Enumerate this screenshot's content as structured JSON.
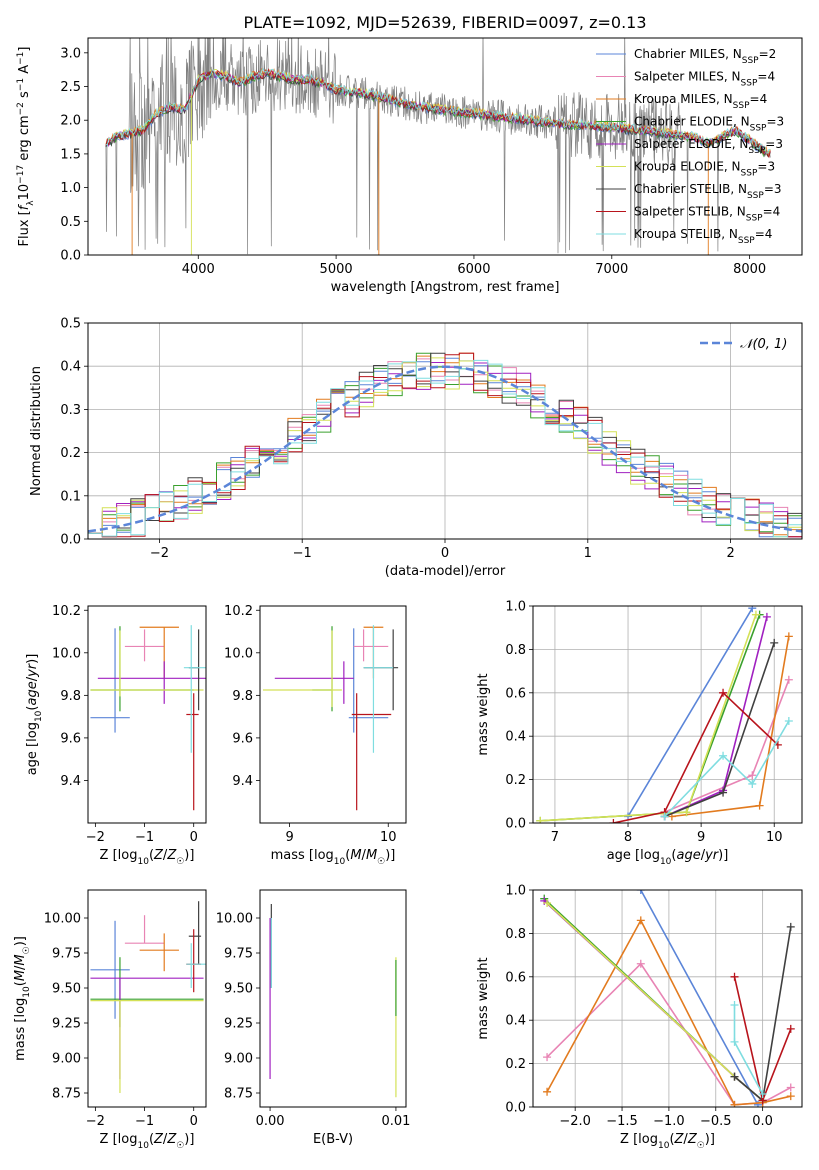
{
  "figure": {
    "title": "PLATE=1092, MJD=52639, FIBERID=0097, z=0.13",
    "colors": {
      "Chabrier MILES": "#5b85d8",
      "Salpeter MILES": "#e884b4",
      "Kroupa MILES": "#e27b1f",
      "Chabrier ELODIE": "#3aa02d",
      "Salpeter ELODIE": "#a020c0",
      "Kroupa ELODIE": "#d4e157",
      "Chabrier STELIB": "#404040",
      "Salpeter STELIB": "#b8141c",
      "Kroupa STELIB": "#7fdde0",
      "data": "#808080",
      "normal": "#5b85d8"
    }
  },
  "chart_data": [
    {
      "id": "spectrum",
      "type": "line",
      "xlabel": "wavelength [Angstrom, rest frame]",
      "ylabel": "Flux [f_λ 10⁻¹⁷ erg cm⁻² s⁻¹ A⁻¹]",
      "xlim": [
        3200,
        8380
      ],
      "ylim": [
        0,
        3.22
      ],
      "xticks": [
        4000,
        5000,
        6000,
        7000,
        8000
      ],
      "yticks": [
        0.0,
        0.5,
        1.0,
        1.5,
        2.0,
        2.5,
        3.0
      ],
      "legend": [
        {
          "label": "Chabrier MILES, N",
          "sub": "SSP",
          "suffix": "=2"
        },
        {
          "label": "Salpeter MILES, N",
          "sub": "SSP",
          "suffix": "=4"
        },
        {
          "label": "Kroupa MILES, N",
          "sub": "SSP",
          "suffix": "=4"
        },
        {
          "label": "Chabrier ELODIE, N",
          "sub": "SSP",
          "suffix": "=3"
        },
        {
          "label": "Salpeter ELODIE, N",
          "sub": "SSP",
          "suffix": "=3"
        },
        {
          "label": "Kroupa ELODIE, N",
          "sub": "SSP",
          "suffix": "=3"
        },
        {
          "label": "Chabrier STELIB, N",
          "sub": "SSP",
          "suffix": "=3"
        },
        {
          "label": "Salpeter STELIB, N",
          "sub": "SSP",
          "suffix": "=4"
        },
        {
          "label": "Kroupa STELIB, N",
          "sub": "SSP",
          "suffix": "=4"
        }
      ],
      "legend_position": "upper right",
      "model_envelope": [
        [
          3330,
          1.65
        ],
        [
          3400,
          1.75
        ],
        [
          3500,
          1.8
        ],
        [
          3600,
          1.85
        ],
        [
          3700,
          2.1
        ],
        [
          3800,
          2.2
        ],
        [
          3900,
          2.15
        ],
        [
          4000,
          2.6
        ],
        [
          4100,
          2.7
        ],
        [
          4200,
          2.65
        ],
        [
          4300,
          2.55
        ],
        [
          4400,
          2.65
        ],
        [
          4500,
          2.7
        ],
        [
          4600,
          2.65
        ],
        [
          4700,
          2.6
        ],
        [
          4800,
          2.6
        ],
        [
          4900,
          2.55
        ],
        [
          5000,
          2.45
        ],
        [
          5200,
          2.4
        ],
        [
          5400,
          2.3
        ],
        [
          5600,
          2.2
        ],
        [
          5800,
          2.15
        ],
        [
          6000,
          2.1
        ],
        [
          6200,
          2.05
        ],
        [
          6400,
          2.0
        ],
        [
          6600,
          1.95
        ],
        [
          6800,
          1.92
        ],
        [
          7000,
          1.9
        ],
        [
          7200,
          1.85
        ],
        [
          7400,
          1.8
        ],
        [
          7600,
          1.75
        ],
        [
          7700,
          1.65
        ],
        [
          7800,
          1.75
        ],
        [
          7900,
          1.85
        ],
        [
          8000,
          1.7
        ],
        [
          8100,
          1.55
        ],
        [
          8150,
          1.5
        ]
      ]
    },
    {
      "id": "residuals",
      "type": "histogram",
      "xlabel": "(data-model)/error",
      "ylabel": "Normed distribution",
      "xlim": [
        -2.5,
        2.5
      ],
      "ylim": [
        0,
        0.5
      ],
      "xticks": [
        -2,
        -1,
        0,
        1,
        2
      ],
      "yticks": [
        0.0,
        0.1,
        0.2,
        0.3,
        0.4,
        0.5
      ],
      "grid": true,
      "legend": {
        "label": "N(0,1)",
        "position": "upper right"
      },
      "curve": {
        "type": "normal",
        "mean": 0,
        "sigma": 1
      }
    },
    {
      "id": "age-vs-Z",
      "type": "errorbar",
      "xlabel": "Z [log10(Z/Z☉)]",
      "ylabel": "age [log10(age/yr)]",
      "xlim": [
        -2.15,
        0.25
      ],
      "ylim": [
        9.2,
        10.22
      ],
      "xticks": [
        -2,
        -1,
        0
      ],
      "yticks": [
        9.4,
        9.6,
        9.8,
        10.0,
        10.2
      ],
      "points": [
        {
          "model": "Chabrier MILES",
          "x": -1.6,
          "xerr": [
            0.5,
            0.3
          ],
          "y": 9.695,
          "yerr": [
            0.07,
            0.42
          ]
        },
        {
          "model": "Salpeter MILES",
          "x": -1.0,
          "xerr": [
            0.4,
            0.4
          ],
          "y": 10.03,
          "yerr": [
            0.07,
            0.08
          ]
        },
        {
          "model": "Kroupa MILES",
          "x": -0.6,
          "xerr": [
            0.5,
            0.3
          ],
          "y": 10.12,
          "yerr": [
            0.24,
            0.0
          ]
        },
        {
          "model": "Chabrier ELODIE",
          "x": -1.5,
          "xerr": [
            0.6,
            1.5
          ],
          "y": 9.825,
          "yerr": [
            0.1,
            0.3
          ]
        },
        {
          "model": "Salpeter ELODIE",
          "x": -0.6,
          "xerr": [
            1.35,
            1.35
          ],
          "y": 9.88,
          "yerr": [
            0.12,
            0.08
          ]
        },
        {
          "model": "Kroupa ELODIE",
          "x": -1.5,
          "xerr": [
            0.6,
            1.7
          ],
          "y": 9.825,
          "yerr": [
            0.03,
            0.28
          ]
        },
        {
          "model": "Chabrier STELIB",
          "x": 0.1,
          "xerr": [
            0.2,
            0.0
          ],
          "y": 9.93,
          "yerr": [
            0.2,
            0.18
          ]
        },
        {
          "model": "Salpeter STELIB",
          "x": 0.0,
          "xerr": [
            0.15,
            0.1
          ],
          "y": 9.71,
          "yerr": [
            0.45,
            0.1
          ]
        },
        {
          "model": "Kroupa STELIB",
          "x": -0.05,
          "xerr": [
            0.15,
            0.3
          ],
          "y": 9.93,
          "yerr": [
            0.4,
            0.2
          ]
        }
      ]
    },
    {
      "id": "age-vs-mass",
      "type": "errorbar",
      "xlabel": "mass [log10(M/M☉)]",
      "ylabel": "",
      "xlim": [
        8.7,
        10.18
      ],
      "ylim": [
        9.2,
        10.22
      ],
      "xticks": [
        9,
        10
      ],
      "yticks": [
        9.4,
        9.6,
        9.8,
        10.0,
        10.2
      ],
      "points": [
        {
          "model": "Chabrier MILES",
          "x": 9.65,
          "xerr": [
            0.05,
            0.35
          ],
          "y": 9.695,
          "yerr": [
            0.07,
            0.42
          ]
        },
        {
          "model": "Salpeter MILES",
          "x": 9.75,
          "xerr": [
            0.1,
            0.25
          ],
          "y": 10.03,
          "yerr": [
            0.07,
            0.08
          ]
        },
        {
          "model": "Kroupa MILES",
          "x": 9.85,
          "xerr": [
            0.1,
            0.1
          ],
          "y": 10.12,
          "yerr": [
            0.24,
            0.0
          ]
        },
        {
          "model": "Chabrier ELODIE",
          "x": 9.43,
          "xerr": [
            0.2,
            0.0
          ],
          "y": 9.825,
          "yerr": [
            0.1,
            0.3
          ]
        },
        {
          "model": "Salpeter ELODIE",
          "x": 9.55,
          "xerr": [
            0.7,
            0.1
          ],
          "y": 9.88,
          "yerr": [
            0.12,
            0.08
          ]
        },
        {
          "model": "Kroupa ELODIE",
          "x": 9.43,
          "xerr": [
            0.7,
            0.1
          ],
          "y": 9.825,
          "yerr": [
            0.08,
            0.28
          ]
        },
        {
          "model": "Chabrier STELIB",
          "x": 10.05,
          "xerr": [
            0.3,
            0.05
          ],
          "y": 9.93,
          "yerr": [
            0.2,
            0.18
          ]
        },
        {
          "model": "Salpeter STELIB",
          "x": 9.68,
          "xerr": [
            0.05,
            0.35
          ],
          "y": 9.71,
          "yerr": [
            0.45,
            0.1
          ]
        },
        {
          "model": "Kroupa STELIB",
          "x": 9.85,
          "xerr": [
            0.1,
            0.2
          ],
          "y": 9.93,
          "yerr": [
            0.4,
            0.2
          ]
        }
      ]
    },
    {
      "id": "massweight-vs-age",
      "type": "line",
      "xlabel": "age [log10(age/yr)]",
      "ylabel": "mass weight",
      "xlim": [
        6.7,
        10.38
      ],
      "ylim": [
        0,
        1.0
      ],
      "xticks": [
        7,
        8,
        9,
        10
      ],
      "yticks": [
        0.0,
        0.2,
        0.4,
        0.6,
        0.8,
        1.0
      ],
      "grid": true,
      "series": [
        {
          "model": "Chabrier MILES",
          "x": [
            8.0,
            9.7
          ],
          "y": [
            0.03,
            0.99
          ]
        },
        {
          "model": "Salpeter MILES",
          "x": [
            8.5,
            9.7,
            10.2
          ],
          "y": [
            0.05,
            0.22,
            0.66
          ]
        },
        {
          "model": "Kroupa MILES",
          "x": [
            8.6,
            9.8,
            10.2
          ],
          "y": [
            0.03,
            0.08,
            0.86
          ]
        },
        {
          "model": "Chabrier ELODIE",
          "x": [
            6.8,
            8.8,
            9.8
          ],
          "y": [
            0.01,
            0.05,
            0.96
          ]
        },
        {
          "model": "Salpeter ELODIE",
          "x": [
            8.5,
            9.3,
            9.9
          ],
          "y": [
            0.03,
            0.15,
            0.95
          ]
        },
        {
          "model": "Kroupa ELODIE",
          "x": [
            6.8,
            8.8,
            9.75
          ],
          "y": [
            0.01,
            0.05,
            0.96
          ]
        },
        {
          "model": "Chabrier STELIB",
          "x": [
            8.5,
            9.3,
            10.0
          ],
          "y": [
            0.03,
            0.14,
            0.83
          ]
        },
        {
          "model": "Salpeter STELIB",
          "x": [
            7.8,
            8.5,
            9.3,
            10.05
          ],
          "y": [
            0.0,
            0.05,
            0.6,
            0.36
          ]
        },
        {
          "model": "Kroupa STELIB",
          "x": [
            8.5,
            9.3,
            9.7,
            10.2
          ],
          "y": [
            0.03,
            0.31,
            0.18,
            0.47
          ]
        }
      ]
    },
    {
      "id": "mass-vs-Z",
      "type": "errorbar",
      "xlabel": "Z [log10(Z/Z☉)]",
      "ylabel": "mass [log10(M/M☉)]",
      "xlim": [
        -2.15,
        0.25
      ],
      "ylim": [
        8.65,
        10.2
      ],
      "xticks": [
        -2,
        -1,
        0
      ],
      "yticks": [
        8.75,
        9.0,
        9.25,
        9.5,
        9.75,
        10.0
      ],
      "points": [
        {
          "model": "Chabrier MILES",
          "x": -1.6,
          "xerr": [
            0.5,
            0.3
          ],
          "y": 9.63,
          "yerr": [
            0.35,
            0.35
          ]
        },
        {
          "model": "Salpeter MILES",
          "x": -1.0,
          "xerr": [
            0.4,
            0.4
          ],
          "y": 9.82,
          "yerr": [
            0.0,
            0.2
          ]
        },
        {
          "model": "Kroupa MILES",
          "x": -0.6,
          "xerr": [
            0.5,
            0.3
          ],
          "y": 9.77,
          "yerr": [
            0.15,
            0.12
          ]
        },
        {
          "model": "Chabrier ELODIE",
          "x": -1.5,
          "xerr": [
            0.6,
            1.7
          ],
          "y": 9.42,
          "yerr": [
            0.2,
            0.3
          ]
        },
        {
          "model": "Salpeter ELODIE",
          "x": -1.5,
          "xerr": [
            0.6,
            1.7
          ],
          "y": 9.57,
          "yerr": [
            0.72,
            0.0
          ]
        },
        {
          "model": "Kroupa ELODIE",
          "x": -1.5,
          "xerr": [
            0.6,
            1.7
          ],
          "y": 9.41,
          "yerr": [
            0.66,
            0.0
          ]
        },
        {
          "model": "Chabrier STELIB",
          "x": 0.1,
          "xerr": [
            0.2,
            0.05
          ],
          "y": 9.87,
          "yerr": [
            0.2,
            0.25
          ]
        },
        {
          "model": "Salpeter STELIB",
          "x": 0.0,
          "xerr": [
            0.15,
            0.15
          ],
          "y": 9.67,
          "yerr": [
            0.2,
            0.25
          ]
        },
        {
          "model": "Kroupa STELIB",
          "x": -0.05,
          "xerr": [
            0.1,
            0.3
          ],
          "y": 9.67,
          "yerr": [
            0.17,
            0.15
          ]
        }
      ]
    },
    {
      "id": "mass-vs-EBV",
      "type": "errorbar",
      "xlabel": "E(B-V)",
      "ylabel": "",
      "xlim": [
        -0.0008,
        0.0108
      ],
      "ylim": [
        8.65,
        10.2
      ],
      "xticks": [
        0.0,
        0.01
      ],
      "xticklabels": [
        "0.00",
        "0.01"
      ],
      "yticks": [
        8.75,
        9.0,
        9.25,
        9.5,
        9.75,
        10.0
      ],
      "points": [
        {
          "model": "Salpeter ELODIE",
          "x": 0.0,
          "xerr": [
            0,
            0
          ],
          "y": 9.5,
          "yerr": [
            0.65,
            0.5
          ]
        },
        {
          "model": "Chabrier STELIB",
          "x": 0.0001,
          "xerr": [
            0,
            0
          ],
          "y": 9.8,
          "yerr": [
            0.3,
            0.3
          ]
        },
        {
          "model": "Kroupa STELIB",
          "x": 0.0001,
          "xerr": [
            0,
            0
          ],
          "y": 9.7,
          "yerr": [
            0.2,
            0.3
          ]
        },
        {
          "model": "Kroupa ELODIE",
          "x": 0.01,
          "xerr": [
            0,
            0
          ],
          "y": 9.22,
          "yerr": [
            0.5,
            0.5
          ]
        },
        {
          "model": "Chabrier ELODIE",
          "x": 0.01,
          "xerr": [
            0,
            0
          ],
          "y": 9.5,
          "yerr": [
            0.2,
            0.2
          ]
        }
      ]
    },
    {
      "id": "massweight-vs-Z",
      "type": "line",
      "xlabel": "Z [log10(Z/Z☉)]",
      "ylabel": "mass weight",
      "xlim": [
        -2.45,
        0.42
      ],
      "ylim": [
        0,
        1.0
      ],
      "xticks": [
        -2.0,
        -1.5,
        -1.0,
        -0.5,
        0.0
      ],
      "xticklabels": [
        "−2.0",
        "−1.5",
        "−1.0",
        "−0.5",
        "0.0"
      ],
      "yticks": [
        0.0,
        0.2,
        0.4,
        0.6,
        0.8,
        1.0
      ],
      "grid": true,
      "series": [
        {
          "model": "Chabrier MILES",
          "x": [
            -1.3,
            -0.05
          ],
          "y": [
            1.0,
            0.01
          ]
        },
        {
          "model": "Salpeter MILES",
          "x": [
            -2.3,
            -1.3,
            -0.3,
            0.0,
            0.3
          ],
          "y": [
            0.23,
            0.66,
            0.01,
            0.02,
            0.09
          ]
        },
        {
          "model": "Kroupa MILES",
          "x": [
            -2.3,
            -1.3,
            -0.3,
            0.0,
            0.3
          ],
          "y": [
            0.07,
            0.86,
            0.01,
            0.02,
            0.05
          ]
        },
        {
          "model": "Chabrier ELODIE",
          "x": [
            -2.33,
            -0.3,
            0.0
          ],
          "y": [
            0.96,
            0.14,
            0.03
          ]
        },
        {
          "model": "Salpeter ELODIE",
          "x": [
            -2.33,
            -0.3,
            0.0
          ],
          "y": [
            0.95,
            0.14,
            0.03
          ]
        },
        {
          "model": "Kroupa ELODIE",
          "x": [
            -2.3,
            -0.3,
            0.0
          ],
          "y": [
            0.94,
            0.14,
            0.03
          ]
        },
        {
          "model": "Chabrier STELIB",
          "x": [
            -0.3,
            0.0,
            0.3
          ],
          "y": [
            0.14,
            0.03,
            0.83
          ]
        },
        {
          "model": "Salpeter STELIB",
          "x": [
            -0.3,
            0.0,
            0.3
          ],
          "y": [
            0.6,
            0.03,
            0.36
          ]
        },
        {
          "model": "Kroupa STELIB",
          "x": [
            -0.3,
            -0.3,
            0.0
          ],
          "y": [
            0.47,
            0.3,
            0.06
          ]
        }
      ]
    }
  ]
}
